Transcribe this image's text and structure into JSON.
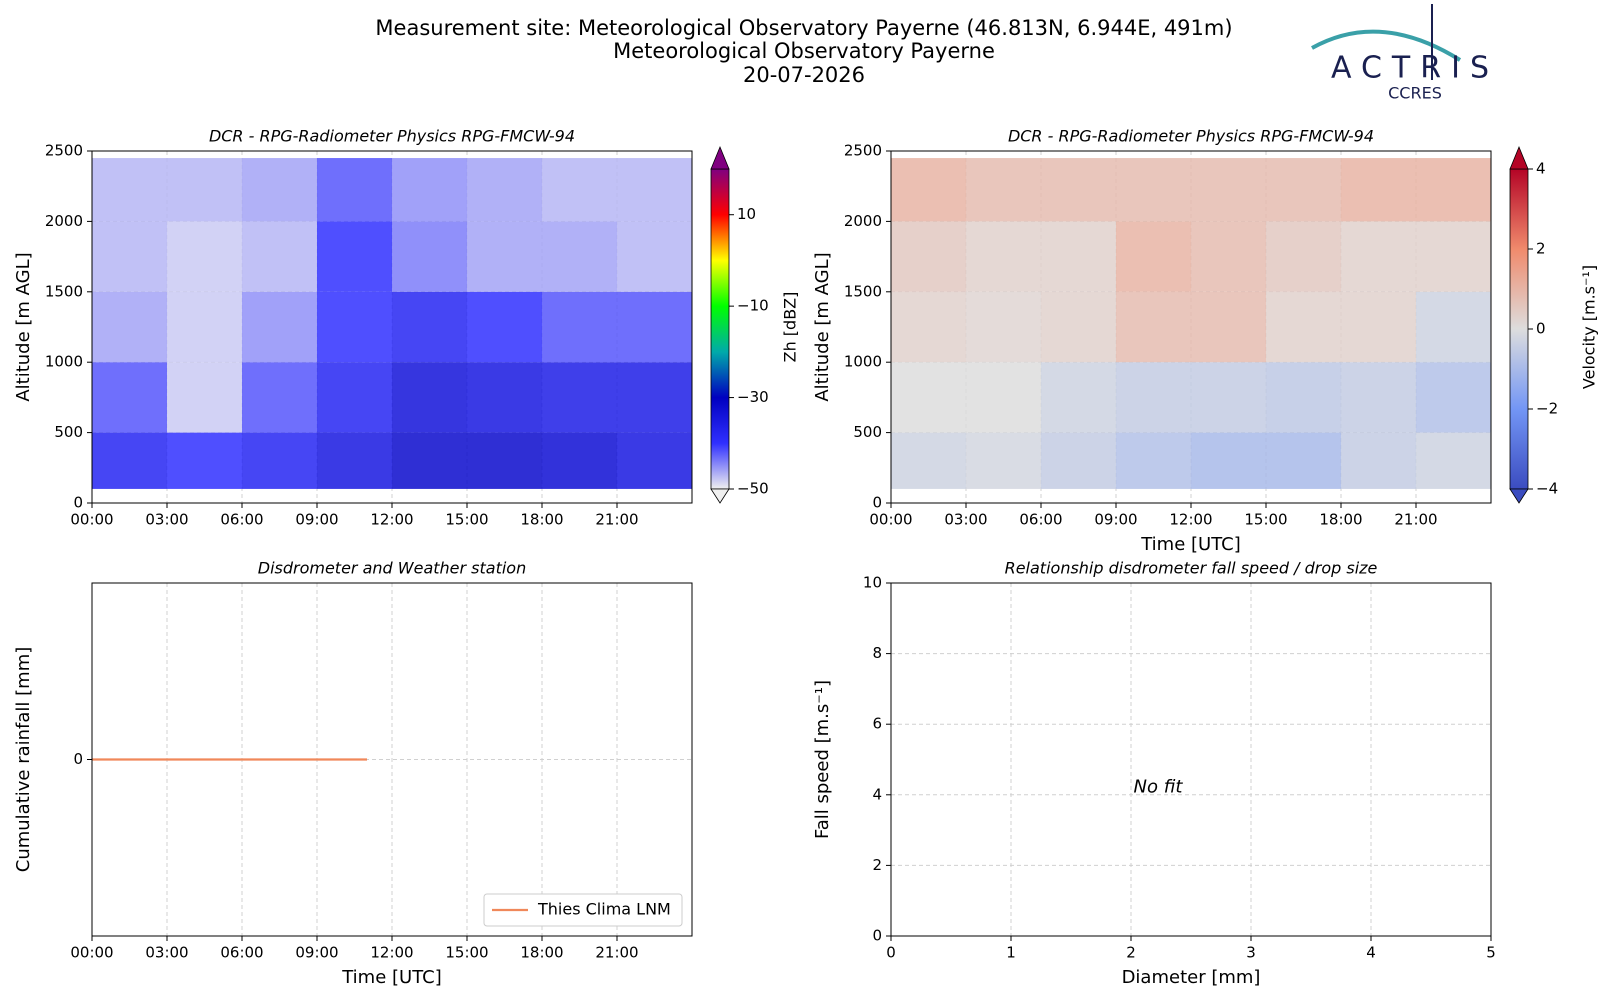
{
  "header": {
    "lines": [
      "Measurement site: Meteorological Observatory Payerne (46.813N, 6.944E, 491m)",
      "Meteorological Observatory Payerne",
      "20-07-2026"
    ],
    "logo": "ACTRIS",
    "logo_sub": "CCRES"
  },
  "chart_data": [
    {
      "type": "heatmap",
      "title": "DCR - RPG-Radiometer Physics RPG-FMCW-94",
      "ylabel": "Altitude [m AGL]",
      "xlim": [
        0,
        24
      ],
      "xticks": [
        {
          "value": 0,
          "label": "00:00"
        },
        {
          "value": 3,
          "label": "03:00"
        },
        {
          "value": 6,
          "label": "06:00"
        },
        {
          "value": 9,
          "label": "09:00"
        },
        {
          "value": 12,
          "label": "12:00"
        },
        {
          "value": 15,
          "label": "15:00"
        },
        {
          "value": 18,
          "label": "18:00"
        },
        {
          "value": 21,
          "label": "21:00"
        }
      ],
      "ylim": [
        0,
        2500
      ],
      "yticks": [
        0,
        500,
        1000,
        1500,
        2000,
        2500
      ],
      "grid": true,
      "x_bins": [
        0,
        3,
        6,
        9,
        12,
        15,
        18,
        21,
        24
      ],
      "y_bins": [
        100,
        500,
        1000,
        1500,
        2000,
        2450
      ],
      "z": [
        [
          -38,
          -40,
          -38,
          -35,
          -32,
          -32,
          -33,
          -35
        ],
        [
          -42,
          -48,
          -42,
          -38,
          -34,
          -35,
          -36,
          -36
        ],
        [
          -46,
          -48,
          -45,
          -40,
          -38,
          -40,
          -42,
          -42
        ],
        [
          -47,
          -48,
          -47,
          -40,
          -44,
          -46,
          -46,
          -47
        ],
        [
          -47,
          -47,
          -46,
          -42,
          -45,
          -46,
          -47,
          -47
        ]
      ],
      "colorbar": {
        "label": "Zh [dBZ]",
        "lim": [
          -50,
          20
        ],
        "ticks": [
          {
            "value": -50,
            "label": "−50"
          },
          {
            "value": -30,
            "label": "−30"
          },
          {
            "value": -10,
            "label": "−10"
          },
          10
        ],
        "colormap": [
          "#f0f0f0",
          "#3030ff",
          "#0000c0",
          "#00aaaa",
          "#00ff00",
          "#ffff00",
          "#ff0000",
          "#800080"
        ]
      }
    },
    {
      "type": "heatmap",
      "title": "DCR - RPG-Radiometer Physics RPG-FMCW-94",
      "ylabel": "Altitude [m AGL]",
      "xlabel": "Time [UTC]",
      "xlim": [
        0,
        24
      ],
      "xticks": [
        {
          "value": 0,
          "label": "00:00"
        },
        {
          "value": 3,
          "label": "03:00"
        },
        {
          "value": 6,
          "label": "06:00"
        },
        {
          "value": 9,
          "label": "09:00"
        },
        {
          "value": 12,
          "label": "12:00"
        },
        {
          "value": 15,
          "label": "15:00"
        },
        {
          "value": 18,
          "label": "18:00"
        },
        {
          "value": 21,
          "label": "21:00"
        }
      ],
      "ylim": [
        0,
        2500
      ],
      "yticks": [
        0,
        500,
        1000,
        1500,
        2000,
        2500
      ],
      "grid": true,
      "x_bins": [
        0,
        3,
        6,
        9,
        12,
        15,
        18,
        21,
        24
      ],
      "y_bins": [
        100,
        500,
        1000,
        1500,
        2000,
        2450
      ],
      "z": [
        [
          -0.3,
          -0.2,
          -0.5,
          -0.8,
          -1,
          -1,
          -0.5,
          -0.3
        ],
        [
          0,
          0,
          -0.3,
          -0.5,
          -0.5,
          -0.6,
          -0.5,
          -0.8
        ],
        [
          0.3,
          0.2,
          0.3,
          0.8,
          0.8,
          0.3,
          0.3,
          -0.3
        ],
        [
          0.5,
          0.3,
          0.3,
          1,
          0.8,
          0.5,
          0.3,
          0.3
        ],
        [
          1,
          0.8,
          0.8,
          0.8,
          0.8,
          0.8,
          1,
          1
        ]
      ],
      "colorbar": {
        "label": "Velocity [m.s⁻¹]",
        "lim": [
          -4,
          4
        ],
        "ticks": [
          {
            "value": -4,
            "label": "−4"
          },
          {
            "value": -2,
            "label": "−2"
          },
          0,
          2,
          4
        ],
        "colormap": [
          "#3b4cc0",
          "#7396f5",
          "#dddddd",
          "#f08a6c",
          "#b40426"
        ]
      }
    },
    {
      "type": "line",
      "title": "Disdrometer and Weather station",
      "xlabel": "Time [UTC]",
      "ylabel": "Cumulative rainfall [mm]",
      "xlim": [
        0,
        24
      ],
      "xticks": [
        {
          "value": 0,
          "label": "00:00"
        },
        {
          "value": 3,
          "label": "03:00"
        },
        {
          "value": 6,
          "label": "06:00"
        },
        {
          "value": 9,
          "label": "09:00"
        },
        {
          "value": 12,
          "label": "12:00"
        },
        {
          "value": 15,
          "label": "15:00"
        },
        {
          "value": 18,
          "label": "18:00"
        },
        {
          "value": 21,
          "label": "21:00"
        }
      ],
      "ylim": [
        -0.055,
        0.055
      ],
      "yticks": [
        0
      ],
      "grid": true,
      "legend": "lower right",
      "series": [
        {
          "name": "Thies Clima LNM",
          "color": "#f0885a",
          "x": [
            0,
            11
          ],
          "values": [
            0,
            0
          ]
        }
      ]
    },
    {
      "type": "scatter",
      "title": "Relationship disdrometer fall speed / drop size",
      "xlabel": "Diameter [mm]",
      "ylabel": "Fall speed [m.s⁻¹]",
      "xlim": [
        0,
        5
      ],
      "xticks": [
        0,
        1,
        2,
        3,
        4,
        5
      ],
      "ylim": [
        0,
        10
      ],
      "yticks": [
        0,
        2,
        4,
        6,
        8,
        10
      ],
      "grid": true,
      "annotation": "No fit"
    }
  ]
}
